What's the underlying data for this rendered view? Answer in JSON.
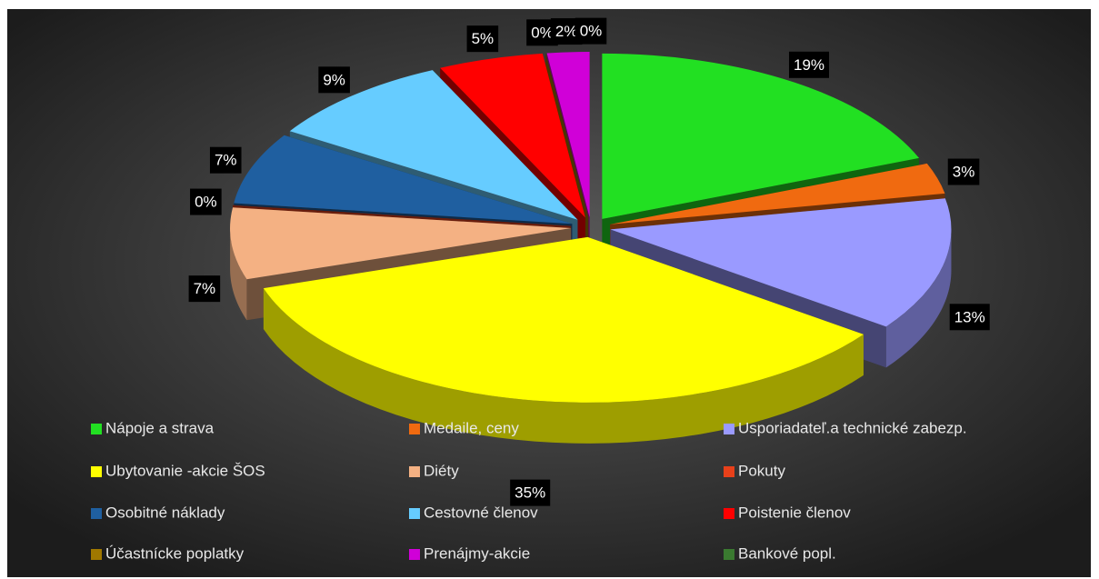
{
  "chart_data": {
    "type": "pie3d",
    "categories": [
      "Nápoje a strava",
      "Medaile, ceny",
      "Usporiadateľ.a technické zabezp.",
      "Ubytovanie -akcie ŠOS",
      "Diéty",
      "Pokuty",
      "Osobitné náklady",
      "Cestovné členov",
      "Poistenie členov",
      "Účastnícke poplatky",
      "Prenájmy-akcie",
      "Bankové popl."
    ],
    "values": [
      19,
      3,
      13,
      35,
      7,
      0,
      7,
      9,
      5,
      0,
      2,
      0
    ],
    "value_labels": [
      "19%",
      "3%",
      "13%",
      "35%",
      "7%",
      "0%",
      "7%",
      "9%",
      "5%",
      "0%",
      "2%",
      "0%"
    ],
    "colors": [
      "#22e022",
      "#f06a10",
      "#9a9aff",
      "#ffff00",
      "#f4b183",
      "#e8401a",
      "#1f5fa0",
      "#66ccff",
      "#ff0000",
      "#a07800",
      "#d000d8",
      "#3a7a30"
    ],
    "legend": "bottom"
  }
}
